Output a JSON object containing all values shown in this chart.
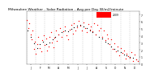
{
  "title": "Milwaukee Weather - Solar Radiation - Avg per Day W/m2/minute",
  "ylim": [
    0,
    7.5
  ],
  "xlim": [
    1,
    365
  ],
  "background_color": "#ffffff",
  "grid_color": "#aaaaaa",
  "dot_color_red": "#ff0000",
  "dot_color_black": "#000000",
  "legend_red_label": "2009",
  "title_fontsize": 3.2,
  "tick_fontsize": 2.2,
  "red_x": [
    3,
    7,
    10,
    14,
    18,
    21,
    25,
    28,
    32,
    36,
    40,
    44,
    48,
    52,
    56,
    60,
    64,
    68,
    72,
    76,
    80,
    84,
    88,
    92,
    96,
    100,
    105,
    110,
    115,
    120,
    125,
    130,
    135,
    140,
    145,
    150,
    155,
    160,
    165,
    170,
    175,
    180,
    185,
    190,
    195,
    200,
    205,
    210,
    215,
    220,
    225,
    230,
    235,
    240,
    245,
    250,
    255,
    260,
    265,
    270,
    275,
    280,
    285,
    290,
    295,
    300,
    305,
    310,
    315,
    320,
    325,
    330,
    335,
    340,
    345,
    350,
    355,
    360
  ],
  "red_y": [
    6.2,
    5.1,
    5.8,
    4.2,
    3.5,
    4.8,
    2.1,
    3.2,
    1.5,
    2.8,
    3.9,
    2.3,
    1.8,
    3.4,
    4.1,
    2.7,
    3.6,
    1.9,
    2.5,
    3.8,
    4.5,
    3.1,
    2.4,
    3.7,
    4.8,
    3.3,
    4.2,
    5.1,
    3.8,
    4.6,
    5.3,
    4.1,
    3.5,
    4.9,
    5.6,
    4.3,
    5.8,
    4.7,
    5.2,
    6.1,
    5.4,
    4.8,
    5.9,
    5.1,
    4.5,
    5.7,
    4.9,
    5.3,
    4.6,
    5.8,
    4.2,
    5.6,
    4.8,
    5.1,
    3.9,
    4.7,
    3.4,
    4.2,
    3.6,
    2.8,
    3.5,
    2.1,
    2.9,
    1.8,
    2.5,
    1.2,
    2.3,
    1.6,
    1.9,
    0.8,
    1.5,
    1.1,
    0.9,
    1.7,
    0.5,
    1.3,
    0.7,
    0.4
  ],
  "black_x": [
    5,
    15,
    25,
    35,
    45,
    55,
    65,
    75,
    85,
    95,
    105,
    115,
    125,
    135,
    145,
    155,
    165,
    175,
    185,
    195,
    205,
    215,
    225,
    235,
    245,
    255,
    265,
    275,
    285,
    295,
    305,
    315,
    325,
    335,
    345,
    355
  ],
  "black_y": [
    4.8,
    3.8,
    2.9,
    2.3,
    2.8,
    3.2,
    2.8,
    3.1,
    3.5,
    3.8,
    4.2,
    4.5,
    4.8,
    4.6,
    5.0,
    5.2,
    5.4,
    5.6,
    5.3,
    5.1,
    4.8,
    4.5,
    4.2,
    3.9,
    3.6,
    3.2,
    2.9,
    2.5,
    2.2,
    1.9,
    1.7,
    1.4,
    1.2,
    1.0,
    0.9,
    0.7
  ],
  "month_ticks": [
    15,
    46,
    74,
    105,
    135,
    166,
    196,
    227,
    258,
    288,
    319,
    349
  ],
  "month_labels": [
    "J",
    "F",
    "M",
    "A",
    "M",
    "J",
    "J",
    "A",
    "S",
    "O",
    "N",
    "D"
  ],
  "month_lines": [
    1,
    32,
    60,
    91,
    121,
    152,
    182,
    213,
    244,
    274,
    305,
    335,
    365
  ],
  "yticks": [
    0,
    1,
    2,
    3,
    4,
    5,
    6,
    7
  ],
  "ytick_labels": [
    "0",
    "1",
    "2",
    "3",
    "4",
    "5",
    "6",
    "7"
  ]
}
